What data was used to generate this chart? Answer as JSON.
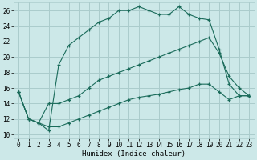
{
  "xlabel": "Humidex (Indice chaleur)",
  "bg_color": "#cce8e8",
  "grid_color": "#aacccc",
  "line_color": "#1a6b5a",
  "xlim": [
    -0.5,
    23.5
  ],
  "ylim": [
    9.5,
    27.0
  ],
  "xticks": [
    0,
    1,
    2,
    3,
    4,
    5,
    6,
    7,
    8,
    9,
    10,
    11,
    12,
    13,
    14,
    15,
    16,
    17,
    18,
    19,
    20,
    21,
    22,
    23
  ],
  "yticks": [
    10,
    12,
    14,
    16,
    18,
    20,
    22,
    24,
    26
  ],
  "line1_x": [
    0,
    1,
    2,
    3,
    4,
    5,
    6,
    7,
    8,
    9,
    10,
    11,
    12,
    13,
    14,
    15,
    16,
    17,
    18,
    19,
    20,
    21,
    22,
    23
  ],
  "line1_y": [
    15.5,
    12.0,
    11.5,
    10.5,
    19.0,
    21.5,
    22.5,
    23.5,
    24.5,
    25.0,
    26.0,
    26.0,
    26.5,
    26.0,
    25.5,
    25.5,
    26.5,
    25.5,
    25.0,
    24.8,
    21.0,
    16.5,
    15.0,
    15.0
  ],
  "line2_x": [
    0,
    1,
    2,
    3,
    4,
    5,
    6,
    7,
    8,
    9,
    10,
    11,
    12,
    13,
    14,
    15,
    16,
    17,
    18,
    19,
    20,
    21,
    22,
    23
  ],
  "line2_y": [
    15.5,
    12.0,
    11.5,
    14.0,
    14.0,
    14.5,
    15.0,
    16.0,
    17.0,
    17.5,
    18.0,
    18.5,
    19.0,
    19.5,
    20.0,
    20.5,
    21.0,
    21.5,
    22.0,
    22.5,
    20.5,
    17.5,
    16.0,
    15.0
  ],
  "line3_x": [
    0,
    1,
    2,
    3,
    4,
    5,
    6,
    7,
    8,
    9,
    10,
    11,
    12,
    13,
    14,
    15,
    16,
    17,
    18,
    19,
    20,
    21,
    22,
    23
  ],
  "line3_y": [
    15.5,
    12.0,
    11.5,
    11.0,
    11.0,
    11.5,
    12.0,
    12.5,
    13.0,
    13.5,
    14.0,
    14.5,
    14.8,
    15.0,
    15.2,
    15.5,
    15.8,
    16.0,
    16.5,
    16.5,
    15.5,
    14.5,
    15.0,
    15.0
  ]
}
